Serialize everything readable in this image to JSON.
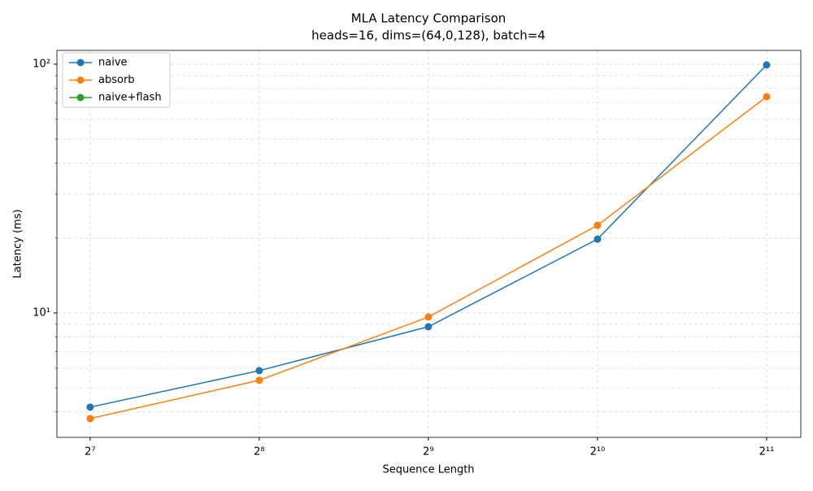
{
  "chart_data": {
    "type": "line",
    "title": "MLA Latency Comparison",
    "subtitle": "heads=16, dims=(64,0,128), batch=4",
    "xlabel": "Sequence Length",
    "ylabel": "Latency (ms)",
    "x": [
      128,
      256,
      512,
      1024,
      2048
    ],
    "series": [
      {
        "name": "naive",
        "color": "#1f77b4",
        "values": [
          4.18,
          5.86,
          8.8,
          19.8,
          99.3
        ]
      },
      {
        "name": "absorb",
        "color": "#ff7f0e",
        "values": [
          3.76,
          5.36,
          9.63,
          22.5,
          74
        ]
      },
      {
        "name": "naive+flash",
        "color": "#2ca02c",
        "values": [
          null,
          null,
          null,
          null,
          null
        ]
      }
    ],
    "xscale": "log",
    "yscale": "log",
    "xlim": [
      111.7,
      2356
    ],
    "ylim": [
      3.16,
      113.6
    ],
    "xticks": [
      {
        "value": 128,
        "label": "2⁷"
      },
      {
        "value": 256,
        "label": "2⁸"
      },
      {
        "value": 512,
        "label": "2⁹"
      },
      {
        "value": 1024,
        "label": "2¹⁰"
      },
      {
        "value": 2048,
        "label": "2¹¹"
      }
    ],
    "yticks": [
      {
        "value": 10,
        "label": "10¹"
      },
      {
        "value": 100,
        "label": "10²"
      }
    ],
    "yminorticks": [
      4,
      5,
      6,
      7,
      8,
      9,
      20,
      30,
      40,
      50,
      60,
      70,
      80,
      90
    ],
    "grid": true,
    "legend": "upper left"
  }
}
